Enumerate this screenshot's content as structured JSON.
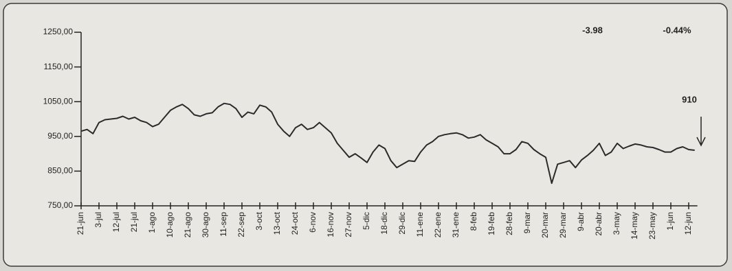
{
  "chart_data": {
    "type": "line",
    "categories": [
      "21-jun",
      null,
      null,
      "3-jul",
      null,
      null,
      "12-jul",
      null,
      null,
      "21-jul",
      null,
      null,
      "1-ago",
      null,
      null,
      "10-ago",
      null,
      null,
      "21-ago",
      null,
      null,
      "30-ago",
      null,
      null,
      "11-sep",
      null,
      null,
      "22-sep",
      null,
      null,
      "3-oct",
      null,
      null,
      "13-oct",
      null,
      null,
      "24-oct",
      null,
      null,
      "6-nov",
      null,
      null,
      "16-nov",
      null,
      null,
      "27-nov",
      null,
      null,
      "5-dic",
      null,
      null,
      "18-dic",
      null,
      null,
      "29-dic",
      null,
      null,
      "11-ene",
      null,
      null,
      "22-ene",
      null,
      null,
      "31-ene",
      null,
      null,
      "8-feb",
      null,
      null,
      "19-feb",
      null,
      null,
      "28-feb",
      null,
      null,
      "9-mar",
      null,
      null,
      "20-mar",
      null,
      null,
      "29-mar",
      null,
      null,
      "9-abr",
      null,
      null,
      "20-abr",
      null,
      null,
      "3-may",
      null,
      null,
      "14-may",
      null,
      null,
      "23-may",
      null,
      null,
      "1-jun",
      null,
      null,
      "12-jun",
      null
    ],
    "values": [
      965,
      970,
      958,
      990,
      998,
      1000,
      1002,
      1008,
      1000,
      1005,
      995,
      990,
      978,
      985,
      1005,
      1025,
      1035,
      1042,
      1030,
      1012,
      1008,
      1015,
      1018,
      1035,
      1045,
      1042,
      1030,
      1005,
      1020,
      1015,
      1040,
      1035,
      1020,
      985,
      965,
      950,
      975,
      985,
      970,
      975,
      990,
      975,
      960,
      930,
      910,
      890,
      900,
      888,
      875,
      905,
      925,
      915,
      880,
      860,
      870,
      880,
      878,
      905,
      925,
      935,
      950,
      955,
      958,
      960,
      955,
      945,
      948,
      955,
      940,
      930,
      920,
      900,
      900,
      912,
      935,
      930,
      912,
      900,
      890,
      815,
      870,
      875,
      880,
      860,
      882,
      895,
      910,
      930,
      895,
      905,
      930,
      915,
      922,
      928,
      925,
      920,
      918,
      912,
      905,
      905,
      915,
      920,
      912,
      910
    ],
    "color": "#2a2a2a",
    "ylim": [
      750,
      1250
    ],
    "yticks": [
      {
        "value": 750,
        "label": "750,00"
      },
      {
        "value": 850,
        "label": "850,00"
      },
      {
        "value": 950,
        "label": "950,00"
      },
      {
        "value": 1050,
        "label": "1050,00"
      },
      {
        "value": 1150,
        "label": "1150,00"
      },
      {
        "value": 1250,
        "label": "1250,00"
      }
    ],
    "annotations": [
      "-3.98",
      "-0.44%",
      "910"
    ]
  }
}
